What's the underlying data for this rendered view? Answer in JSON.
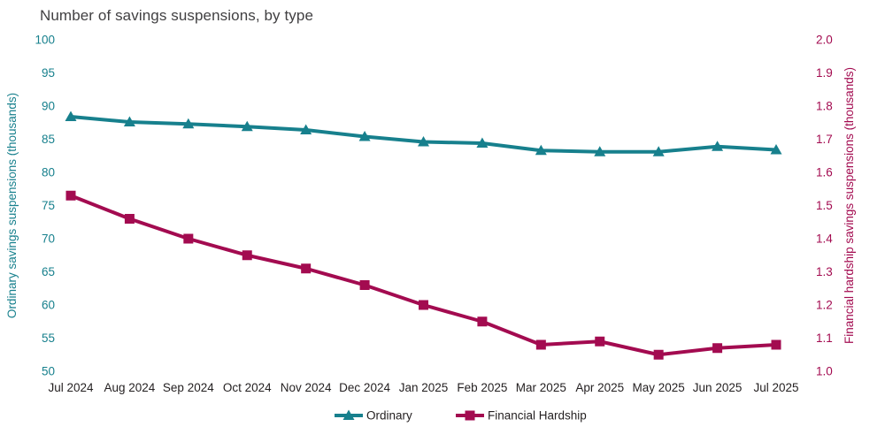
{
  "chart_data": {
    "type": "line",
    "title": "Number of savings suspensions, by type",
    "categories": [
      "Jul 2024",
      "Aug 2024",
      "Sep 2024",
      "Oct 2024",
      "Nov 2024",
      "Dec 2024",
      "Jan 2025",
      "Feb 2025",
      "Mar 2025",
      "Apr 2025",
      "May 2025",
      "Jun 2025",
      "Jul 2025"
    ],
    "series": [
      {
        "name": "Ordinary",
        "axis": "left",
        "color": "#17808d",
        "marker": "triangle",
        "values": [
          88.4,
          87.6,
          87.3,
          86.9,
          86.4,
          85.4,
          84.6,
          84.4,
          83.3,
          83.1,
          83.1,
          83.9,
          83.4
        ]
      },
      {
        "name": "Financial Hardship",
        "axis": "right",
        "color": "#a30b50",
        "marker": "square",
        "values": [
          1.53,
          1.46,
          1.4,
          1.35,
          1.31,
          1.26,
          1.2,
          1.15,
          1.08,
          1.09,
          1.05,
          1.07,
          1.08
        ]
      }
    ],
    "left_axis": {
      "label": "Ordinary savings suspensions (thousands)",
      "min": 50,
      "max": 100,
      "step": 5,
      "color": "#17808d",
      "tick_labels": [
        "50",
        "55",
        "60",
        "65",
        "70",
        "75",
        "80",
        "85",
        "90",
        "95",
        "100"
      ]
    },
    "right_axis": {
      "label": "Financial hardship savings suspensions (thousands)",
      "min": 1.0,
      "max": 2.0,
      "step": 0.1,
      "color": "#a30b50",
      "tick_labels": [
        "1.0",
        "1.1",
        "1.2",
        "1.3",
        "1.4",
        "1.5",
        "1.6",
        "1.7",
        "1.8",
        "1.9",
        "2.0"
      ]
    },
    "x_tick_color": "#231f20",
    "title_color": "#414042",
    "grid": false,
    "legend_position": "bottom"
  }
}
